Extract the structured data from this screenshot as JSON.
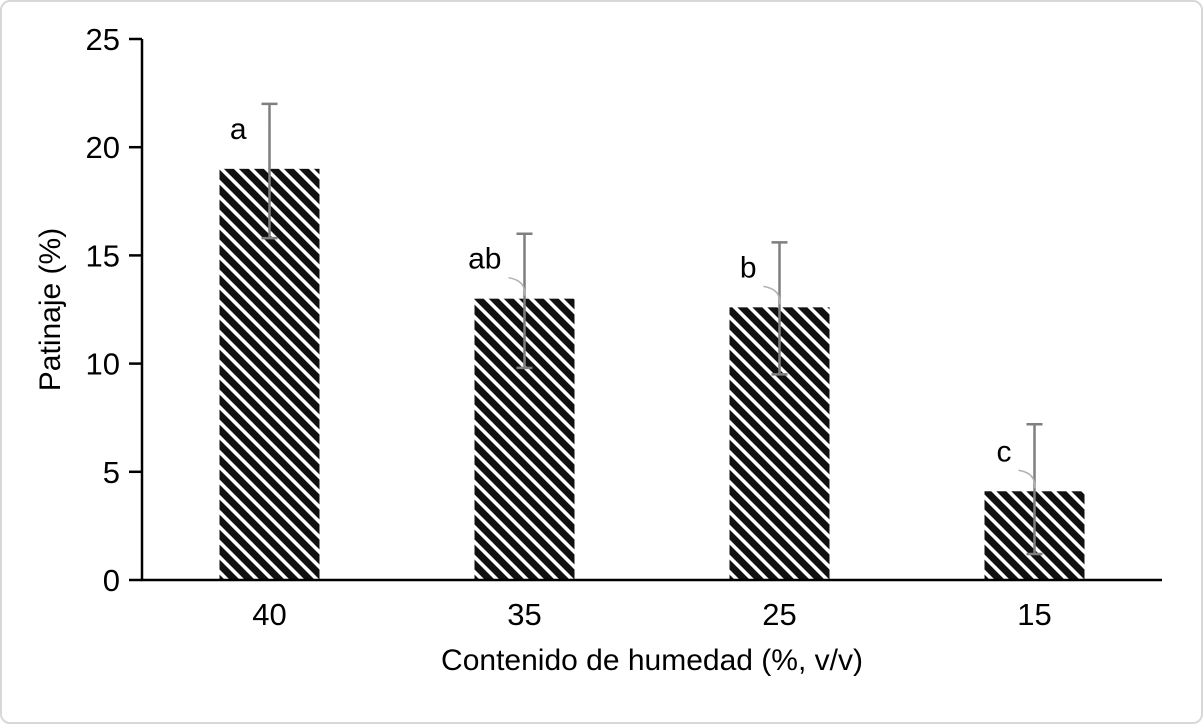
{
  "chart_data": {
    "type": "bar",
    "title": "",
    "xlabel": "Contenido de humedad (%, v/v)",
    "ylabel": "Patinaje (%)",
    "ylim": [
      0,
      25
    ],
    "yticks": [
      0,
      5,
      10,
      15,
      20,
      25
    ],
    "categories": [
      "40",
      "35",
      "25",
      "15"
    ],
    "values": [
      19.0,
      13.0,
      12.6,
      4.1
    ],
    "error_upper": [
      22.0,
      16.0,
      15.6,
      7.2
    ],
    "error_lower": [
      15.8,
      9.8,
      9.5,
      1.2
    ],
    "sig_letters": [
      "a",
      "ab",
      "b",
      "c"
    ],
    "letter_leader": [
      false,
      true,
      true,
      true
    ],
    "bar_style": "diagonal-hatch",
    "bar_color": "#111111",
    "axis_color": "#000000",
    "error_color": "#7f7f7f",
    "leader_color": "#b0b0b0",
    "grid": "off",
    "legend": "none"
  }
}
